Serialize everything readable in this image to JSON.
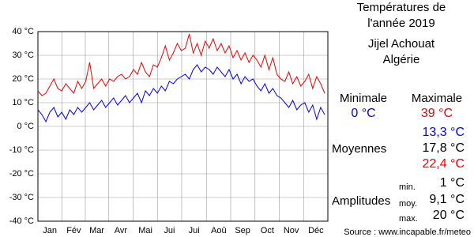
{
  "chart_data": {
    "type": "line",
    "title": [
      "Températures de",
      "l'année 2019"
    ],
    "subtitle": [
      "Jijel Achouat",
      "Algérie"
    ],
    "x": [
      1,
      6,
      11,
      16,
      21,
      26,
      31,
      36,
      41,
      46,
      51,
      56,
      61,
      66,
      71,
      76,
      81,
      86,
      91,
      96,
      101,
      106,
      111,
      116,
      121,
      126,
      131,
      136,
      141,
      146,
      151,
      156,
      161,
      166,
      171,
      176,
      181,
      186,
      191,
      196,
      201,
      206,
      211,
      216,
      221,
      226,
      231,
      236,
      241,
      246,
      251,
      256,
      261,
      266,
      271,
      276,
      281,
      286,
      291,
      296,
      301,
      306,
      311,
      316,
      321,
      326,
      331,
      336,
      341,
      346,
      351,
      356,
      361
    ],
    "series": [
      {
        "name": "Maximale",
        "color": "#ee0000",
        "values": [
          15,
          13,
          14,
          17,
          20,
          16,
          15,
          18,
          16,
          14,
          19,
          16,
          19,
          27,
          16,
          18,
          20,
          17,
          20,
          19,
          21,
          22,
          20,
          21,
          24,
          22,
          27,
          23,
          21,
          26,
          25,
          29,
          34,
          28,
          31,
          35,
          32,
          33,
          39,
          31,
          35,
          30,
          36,
          33,
          37,
          32,
          35,
          31,
          34,
          29,
          32,
          28,
          31,
          27,
          30,
          28,
          25,
          30,
          24,
          29,
          22,
          20,
          19,
          23,
          18,
          21,
          17,
          19,
          22,
          16,
          21,
          18,
          14
        ]
      },
      {
        "name": "Minimale",
        "color": "#0000ee",
        "values": [
          7,
          5,
          2,
          6,
          8,
          4,
          6,
          3,
          7,
          5,
          8,
          6,
          8,
          10,
          7,
          9,
          11,
          8,
          10,
          12,
          9,
          11,
          13,
          10,
          12,
          14,
          10,
          15,
          13,
          16,
          14,
          17,
          15,
          19,
          18,
          20,
          21,
          22,
          20,
          24,
          26,
          23,
          25,
          24,
          22,
          25,
          23,
          21,
          24,
          20,
          22,
          18,
          21,
          19,
          20,
          17,
          15,
          18,
          14,
          16,
          13,
          12,
          10,
          8,
          11,
          7,
          9,
          10,
          6,
          9,
          3,
          8,
          5
        ]
      }
    ],
    "xlim": [
      1,
      365
    ],
    "xticks": [
      {
        "value": 16,
        "label": "Jan"
      },
      {
        "value": 46,
        "label": "Fév"
      },
      {
        "value": 75,
        "label": "Mar"
      },
      {
        "value": 105,
        "label": "Avr"
      },
      {
        "value": 136,
        "label": "Mai"
      },
      {
        "value": 166,
        "label": "Jui"
      },
      {
        "value": 197,
        "label": "Jui"
      },
      {
        "value": 228,
        "label": "Aoû"
      },
      {
        "value": 258,
        "label": "Sep"
      },
      {
        "value": 289,
        "label": "Oct"
      },
      {
        "value": 319,
        "label": "Nov"
      },
      {
        "value": 350,
        "label": "Déc"
      }
    ],
    "ylim": [
      -40,
      40
    ],
    "yticks": [
      {
        "value": 40,
        "label": "40 °C"
      },
      {
        "value": 30,
        "label": "30 °C"
      },
      {
        "value": 20,
        "label": "20 °C"
      },
      {
        "value": 10,
        "label": "10 °C"
      },
      {
        "value": 0,
        "label": "0 °C"
      },
      {
        "value": -10,
        "label": "-10 °C"
      },
      {
        "value": -20,
        "label": "-20 °C"
      },
      {
        "value": -30,
        "label": "-30 °C"
      },
      {
        "value": -40,
        "label": "-40 °C"
      }
    ],
    "grid": true
  },
  "summary": {
    "minimale": {
      "label": "Minimale",
      "value": "0 °C"
    },
    "maximale": {
      "label": "Maximale",
      "value": "39 °C"
    },
    "moyennes": {
      "label": "Moyennes",
      "min": "13,3 °C",
      "avg": "17,8 °C",
      "max": "22,4 °C"
    },
    "amplitudes": {
      "label": "Amplitudes",
      "min_label": "min.",
      "min": "1 °C",
      "avg_label": "moy.",
      "avg": "9,1 °C",
      "max_label": "max.",
      "max": "20 °C"
    },
    "source": "Source : www.incapable.fr/meteo"
  }
}
